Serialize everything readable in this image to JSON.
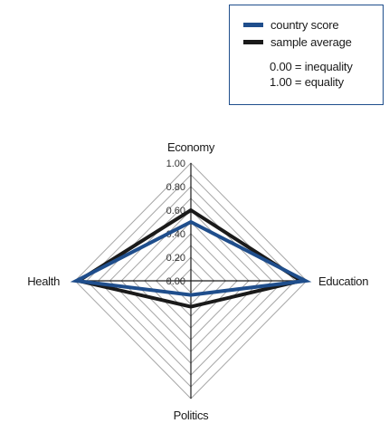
{
  "legend": {
    "items": [
      {
        "label": "country score",
        "color": "#1f4e8c"
      },
      {
        "label": "sample average",
        "color": "#1a1a1a"
      }
    ],
    "notes": [
      "0.00 = inequality",
      "1.00 = equality"
    ]
  },
  "chart_data": {
    "type": "radar",
    "axes": [
      "Economy",
      "Education",
      "Politics",
      "Health"
    ],
    "scale": [
      0,
      1
    ],
    "ticks": [
      "0.00",
      "0.20",
      "0.40",
      "0.60",
      "0.80",
      "1.00"
    ],
    "grid": true,
    "legend_position": "top-right",
    "series": [
      {
        "name": "sample average",
        "color": "#1a1a1a",
        "values": [
          0.6,
          0.95,
          0.22,
          0.97
        ]
      },
      {
        "name": "country score",
        "color": "#1f4e8c",
        "values": [
          0.5,
          0.99,
          0.12,
          0.99
        ]
      }
    ]
  }
}
